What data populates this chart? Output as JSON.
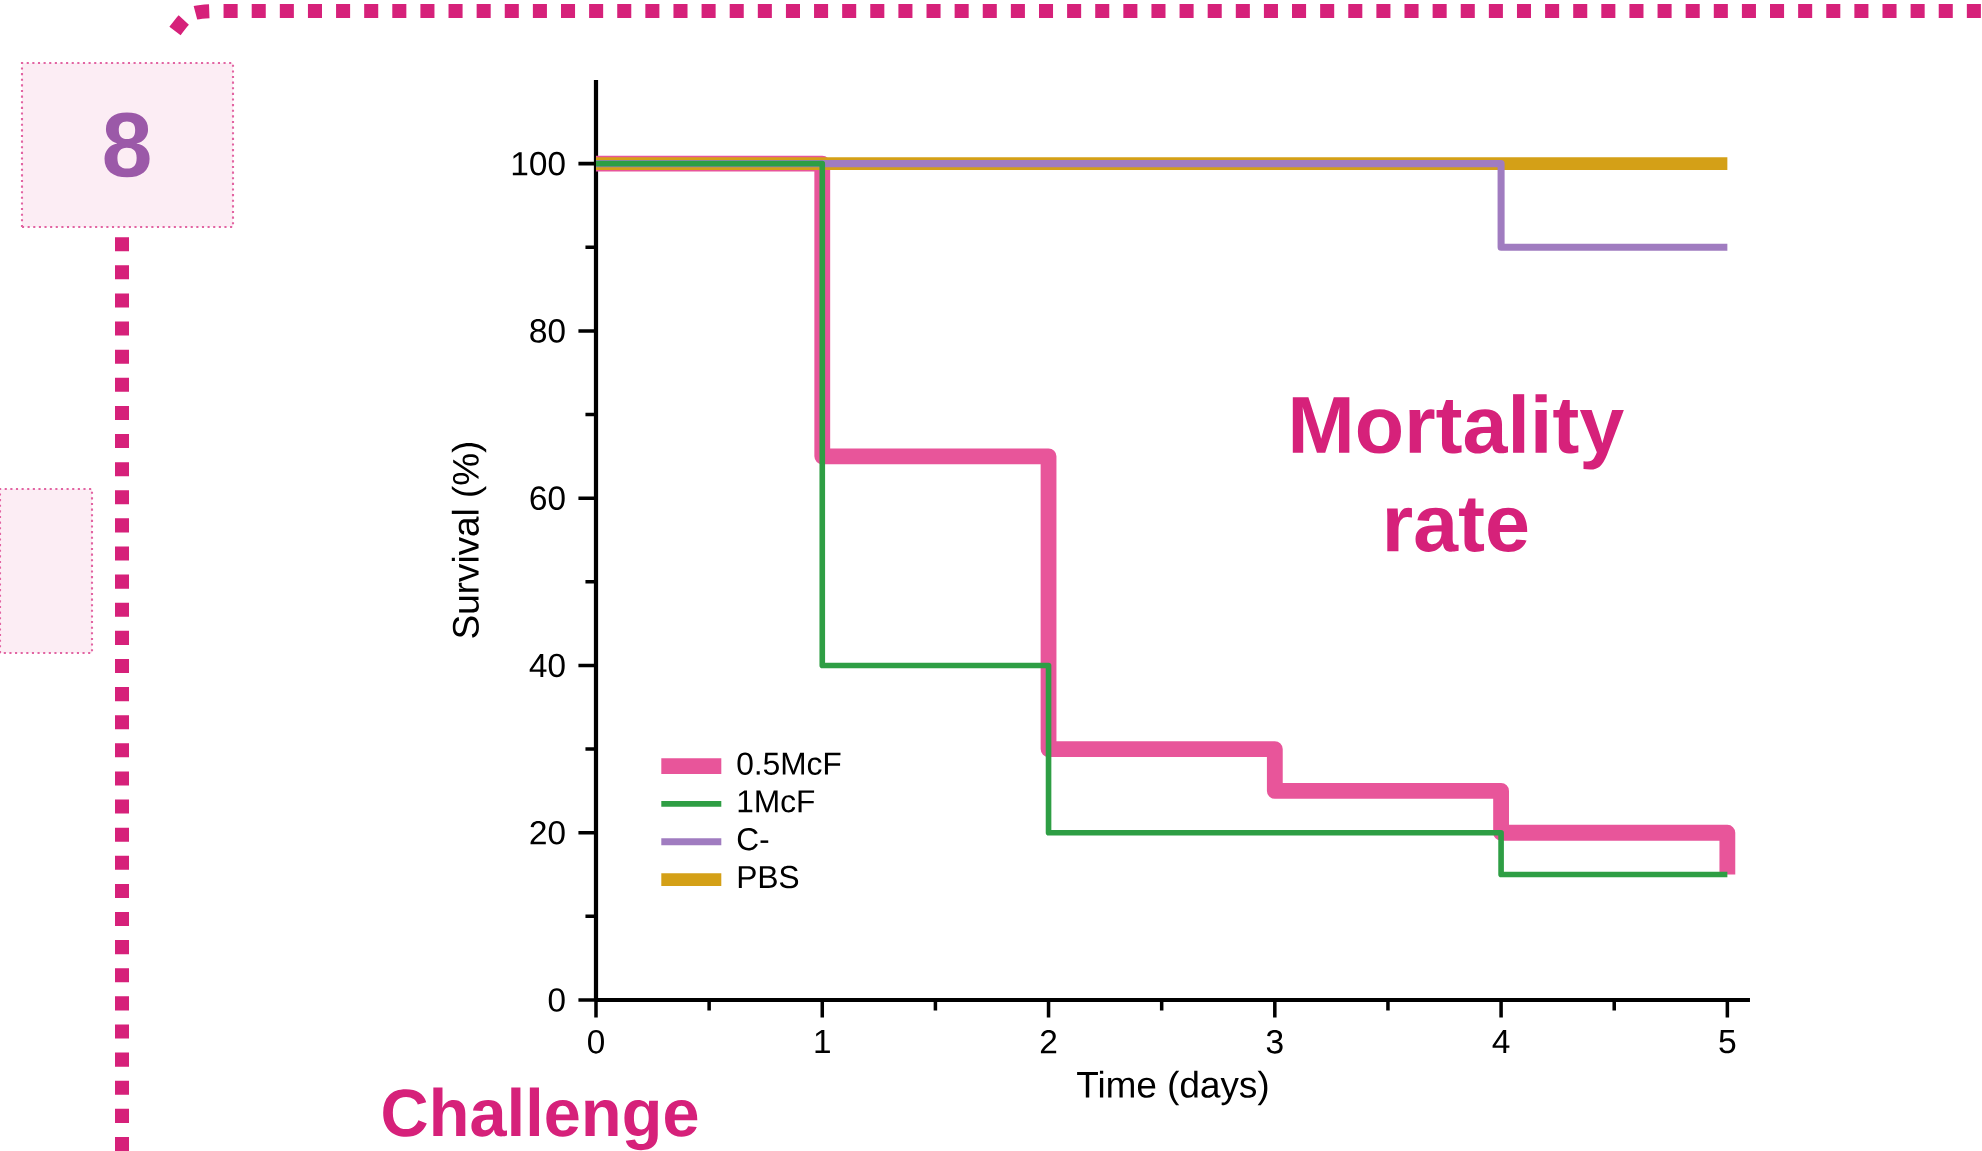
{
  "chart_data": {
    "type": "step",
    "xlabel": "Time (days)",
    "ylabel": "Survival (%)",
    "x": [
      0,
      1,
      2,
      3,
      4,
      5
    ],
    "series": [
      {
        "name": "0.5McF",
        "color": "#e8559a",
        "values": [
          100,
          65,
          30,
          25,
          20,
          15
        ]
      },
      {
        "name": "1McF",
        "color": "#2e9e44",
        "values": [
          100,
          40,
          20,
          20,
          15,
          15
        ]
      },
      {
        "name": "C-",
        "color": "#a07cc0",
        "values": [
          100,
          100,
          100,
          100,
          90,
          90
        ]
      },
      {
        "name": "PBS",
        "color": "#d4a017",
        "values": [
          100,
          100,
          100,
          100,
          100,
          100
        ]
      }
    ],
    "xlim": [
      0,
      5.1
    ],
    "ylim": [
      0,
      110
    ],
    "xticks": [
      0,
      1,
      2,
      3,
      4,
      5
    ],
    "yticks": [
      0,
      20,
      40,
      60,
      80,
      100
    ],
    "grid": false,
    "legend": "bottom left",
    "annotations": [
      "8",
      "Mortality rate",
      "Challenge"
    ]
  }
}
